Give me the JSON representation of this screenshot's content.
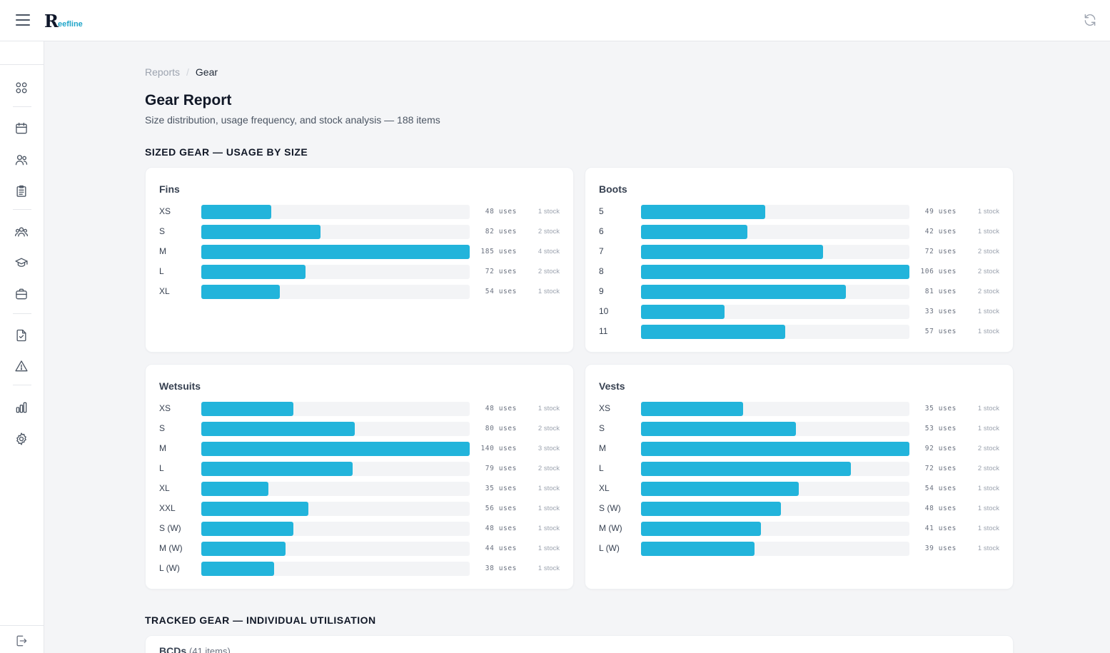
{
  "app": {
    "logo_initial": "R",
    "logo_text": "eefline"
  },
  "colors": {
    "bar": "#22b4db",
    "track": "#f3f4f6",
    "accent": "#22a6c9"
  },
  "header": {
    "menu_icon": "hamburger-icon",
    "refresh_icon": "refresh-icon"
  },
  "sidebar": {
    "items": [
      {
        "name": "dashboard",
        "icon": "grid-icon"
      },
      {
        "name": "calendar",
        "icon": "calendar-icon"
      },
      {
        "name": "customers",
        "icon": "users-icon"
      },
      {
        "name": "bookings",
        "icon": "clipboard-icon"
      },
      {
        "name": "staff",
        "icon": "team-icon"
      },
      {
        "name": "courses",
        "icon": "graduation-cap-icon"
      },
      {
        "name": "gear",
        "icon": "briefcase-icon"
      },
      {
        "name": "documents",
        "icon": "file-check-icon"
      },
      {
        "name": "incidents",
        "icon": "warning-icon"
      },
      {
        "name": "reports",
        "icon": "bar-chart-icon"
      },
      {
        "name": "settings",
        "icon": "gear-icon"
      },
      {
        "name": "logout",
        "icon": "logout-icon"
      }
    ]
  },
  "breadcrumb": {
    "parent": "Reports",
    "separator": "/",
    "current": "Gear"
  },
  "page": {
    "title": "Gear Report",
    "subtitle": "Size distribution, usage frequency, and stock analysis — 188 items"
  },
  "sections": {
    "sized": "SIZED GEAR — USAGE BY SIZE",
    "tracked": "TRACKED GEAR — INDIVIDUAL UTILISATION"
  },
  "tracked_card": {
    "title": "BCDs",
    "count": "(41 items)"
  },
  "chart_data": [
    {
      "type": "bar",
      "title": "Fins",
      "categories": [
        "XS",
        "S",
        "M",
        "L",
        "XL"
      ],
      "values": [
        48,
        82,
        185,
        72,
        54
      ],
      "uses": [
        "48 uses",
        "82 uses",
        "185 uses",
        "72 uses",
        "54 uses"
      ],
      "stock": [
        "1 stock",
        "2 stock",
        "4 stock",
        "2 stock",
        "1 stock"
      ]
    },
    {
      "type": "bar",
      "title": "Boots",
      "categories": [
        "5",
        "6",
        "7",
        "8",
        "9",
        "10",
        "11"
      ],
      "values": [
        49,
        42,
        72,
        106,
        81,
        33,
        57
      ],
      "uses": [
        "49 uses",
        "42 uses",
        "72 uses",
        "106 uses",
        "81 uses",
        "33 uses",
        "57 uses"
      ],
      "stock": [
        "1 stock",
        "1 stock",
        "2 stock",
        "2 stock",
        "2 stock",
        "1 stock",
        "1 stock"
      ]
    },
    {
      "type": "bar",
      "title": "Wetsuits",
      "categories": [
        "XS",
        "S",
        "M",
        "L",
        "XL",
        "XXL",
        "S (W)",
        "M (W)",
        "L (W)"
      ],
      "values": [
        48,
        80,
        140,
        79,
        35,
        56,
        48,
        44,
        38
      ],
      "uses": [
        "48 uses",
        "80 uses",
        "140 uses",
        "79 uses",
        "35 uses",
        "56 uses",
        "48 uses",
        "44 uses",
        "38 uses"
      ],
      "stock": [
        "1 stock",
        "2 stock",
        "3 stock",
        "2 stock",
        "1 stock",
        "1 stock",
        "1 stock",
        "1 stock",
        "1 stock"
      ]
    },
    {
      "type": "bar",
      "title": "Vests",
      "categories": [
        "XS",
        "S",
        "M",
        "L",
        "XL",
        "S (W)",
        "M (W)",
        "L (W)"
      ],
      "values": [
        35,
        53,
        92,
        72,
        54,
        48,
        41,
        39
      ],
      "uses": [
        "35 uses",
        "53 uses",
        "92 uses",
        "72 uses",
        "54 uses",
        "48 uses",
        "41 uses",
        "39 uses"
      ],
      "stock": [
        "1 stock",
        "1 stock",
        "2 stock",
        "2 stock",
        "1 stock",
        "1 stock",
        "1 stock",
        "1 stock"
      ]
    }
  ]
}
